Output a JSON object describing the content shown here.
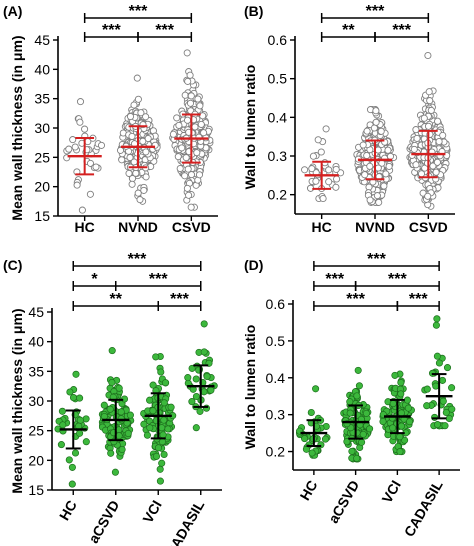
{
  "chart_data": [
    {
      "panel": "(A)",
      "type": "scatter",
      "ylabel": "Mean wall thickness (in μm)",
      "categories": [
        "HC",
        "NVND",
        "CSVD"
      ],
      "ylim": [
        15,
        45
      ],
      "yticks": [
        15,
        20,
        25,
        30,
        35,
        40,
        45
      ],
      "mean": [
        25.2,
        26.8,
        28.2
      ],
      "sd": [
        3.1,
        3.5,
        4.1
      ],
      "range": [
        [
          16,
          34.5
        ],
        [
          17.5,
          38.5
        ],
        [
          16.5,
          42.8
        ]
      ],
      "n": [
        35,
        260,
        300
      ],
      "point_style": "open",
      "point_color": "#808080",
      "bar_color": "#d42020",
      "comparisons": [
        {
          "from": 0,
          "to": 2,
          "label": "***"
        },
        {
          "from": 0,
          "to": 1,
          "label": "***"
        },
        {
          "from": 1,
          "to": 2,
          "label": "***"
        }
      ]
    },
    {
      "panel": "(B)",
      "type": "scatter",
      "ylabel": "Wall to lumen ratio",
      "categories": [
        "HC",
        "NVND",
        "CSVD"
      ],
      "ylim": [
        0.15,
        0.6
      ],
      "yticks": [
        0.2,
        0.3,
        0.4,
        0.5,
        0.6
      ],
      "mean": [
        0.25,
        0.29,
        0.305
      ],
      "sd": [
        0.035,
        0.05,
        0.06
      ],
      "range": [
        [
          0.19,
          0.37
        ],
        [
          0.18,
          0.42
        ],
        [
          0.17,
          0.56
        ]
      ],
      "n": [
        35,
        260,
        300
      ],
      "point_style": "open",
      "point_color": "#808080",
      "bar_color": "#d42020",
      "comparisons": [
        {
          "from": 0,
          "to": 2,
          "label": "***"
        },
        {
          "from": 0,
          "to": 1,
          "label": "**"
        },
        {
          "from": 1,
          "to": 2,
          "label": "***"
        }
      ]
    },
    {
      "panel": "(C)",
      "type": "scatter",
      "ylabel": "Mean wall thickness (in μm)",
      "categories": [
        "HC",
        "aCSVD",
        "VCI",
        "CADASIL"
      ],
      "ylim": [
        15,
        45
      ],
      "yticks": [
        15,
        20,
        25,
        30,
        35,
        40,
        45
      ],
      "mean": [
        25.2,
        26.8,
        27.5,
        32.5
      ],
      "sd": [
        3.2,
        3.4,
        3.8,
        3.5
      ],
      "range": [
        [
          16,
          34.5
        ],
        [
          18,
          38.5
        ],
        [
          16.5,
          37.5
        ],
        [
          25.5,
          43
        ]
      ],
      "n": [
        35,
        110,
        110,
        35
      ],
      "point_style": "filled",
      "point_color": "#3cb83c",
      "bar_color": "#000000",
      "comparisons": [
        {
          "from": 0,
          "to": 3,
          "label": "***"
        },
        {
          "from": 0,
          "to": 1,
          "label": "*"
        },
        {
          "from": 1,
          "to": 3,
          "label": "***"
        },
        {
          "from": 0,
          "to": 2,
          "label": "**"
        },
        {
          "from": 2,
          "to": 3,
          "label": "***"
        }
      ]
    },
    {
      "panel": "(D)",
      "type": "scatter",
      "ylabel": "Wall to lumen ratio",
      "categories": [
        "HC",
        "aCSVD",
        "VCI",
        "CADASIL"
      ],
      "ylim": [
        0.15,
        0.6
      ],
      "yticks": [
        0.2,
        0.3,
        0.4,
        0.5,
        0.6
      ],
      "mean": [
        0.25,
        0.28,
        0.295,
        0.35
      ],
      "sd": [
        0.035,
        0.045,
        0.045,
        0.06
      ],
      "range": [
        [
          0.19,
          0.37
        ],
        [
          0.18,
          0.42
        ],
        [
          0.2,
          0.41
        ],
        [
          0.27,
          0.56
        ]
      ],
      "n": [
        35,
        110,
        110,
        35
      ],
      "point_style": "filled",
      "point_color": "#3cb83c",
      "bar_color": "#000000",
      "comparisons": [
        {
          "from": 0,
          "to": 3,
          "label": "***"
        },
        {
          "from": 0,
          "to": 1,
          "label": "***"
        },
        {
          "from": 1,
          "to": 3,
          "label": "***"
        },
        {
          "from": 0,
          "to": 2,
          "label": "***"
        },
        {
          "from": 2,
          "to": 3,
          "label": "***"
        }
      ]
    }
  ]
}
